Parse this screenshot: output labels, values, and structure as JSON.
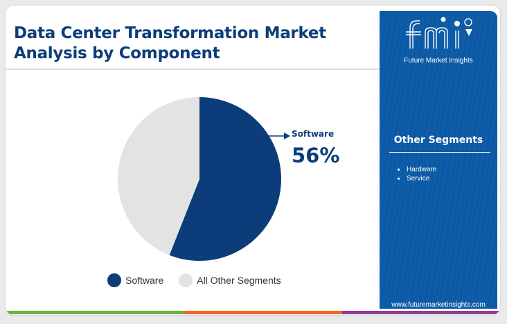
{
  "header": {
    "title_line1": "Data Center Transformation Market",
    "title_line2": "Analysis by Component"
  },
  "brand": {
    "logo_text": "fmi",
    "tagline": "Future Market Insights",
    "website": "www.futuremarketinsights.com"
  },
  "callout": {
    "label": "Software",
    "value": "56%"
  },
  "sidebar": {
    "heading": "Other Segments",
    "items": [
      {
        "label": "Hardware"
      },
      {
        "label": "Service"
      }
    ]
  },
  "legend": {
    "items": [
      {
        "label": "Software"
      },
      {
        "label": "All Other Segments"
      }
    ]
  },
  "colors": {
    "primary": "#0c3d7a",
    "secondary": "#e3e3e3",
    "sidebar": "#0c5aa6",
    "bar_green": "#6cb33f",
    "bar_orange": "#f26522",
    "bar_purple": "#8e3c97"
  },
  "chart_data": {
    "type": "pie",
    "title": "Data Center Transformation Market Analysis by Component",
    "slices": [
      {
        "label": "Software",
        "value": 56,
        "color": "#0c3d7a"
      },
      {
        "label": "All Other Segments",
        "value": 44,
        "color": "#e3e3e3"
      }
    ],
    "legend_position": "bottom"
  }
}
